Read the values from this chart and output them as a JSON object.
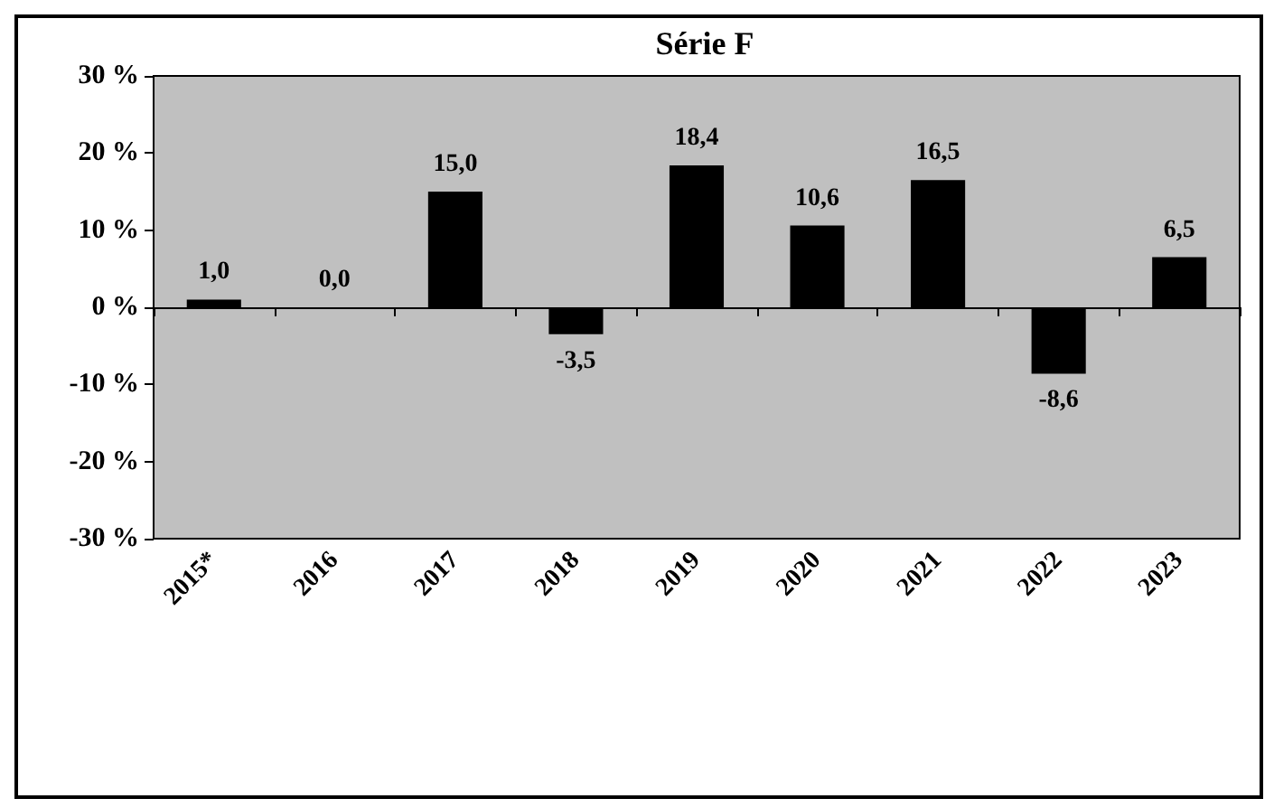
{
  "chart_data": {
    "type": "bar",
    "title": "Série F",
    "categories": [
      "2015*",
      "2016",
      "2017",
      "2018",
      "2019",
      "2020",
      "2021",
      "2022",
      "2023"
    ],
    "values": [
      1.0,
      0.0,
      15.0,
      -3.5,
      18.4,
      10.6,
      16.5,
      -8.6,
      6.5
    ],
    "value_labels": [
      "1,0",
      "0,0",
      "15,0",
      "-3,5",
      "18,4",
      "10,6",
      "16,5",
      "-8,6",
      "6,5"
    ],
    "color": "#000000",
    "ylim": [
      -30,
      30
    ],
    "yticks": [
      {
        "value": -30,
        "label": "-30 %"
      },
      {
        "value": -20,
        "label": "-20 %"
      },
      {
        "value": -10,
        "label": "-10 %"
      },
      {
        "value": 0,
        "label": "0 %"
      },
      {
        "value": 10,
        "label": "10 %"
      },
      {
        "value": 20,
        "label": "20 %"
      },
      {
        "value": 30,
        "label": "30 %"
      }
    ]
  }
}
